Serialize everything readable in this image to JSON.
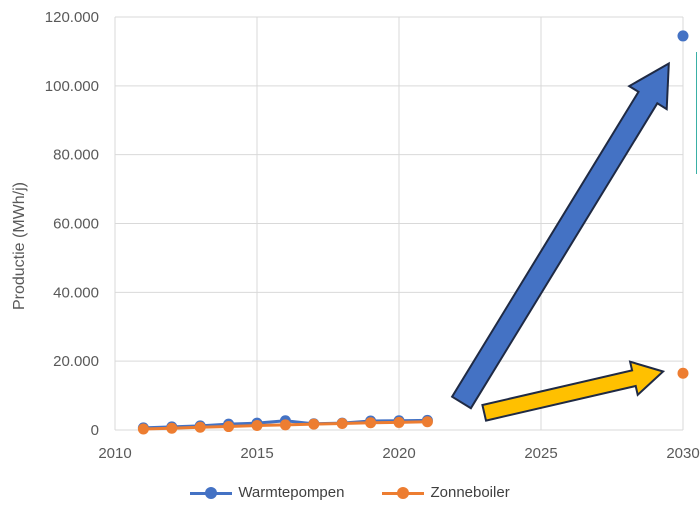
{
  "colors": {
    "warmtepompen": "#4472C4",
    "zonneboiler": "#ED7D31",
    "yellow_arrow": "#FFC000",
    "arrow_stroke": "#1f2a44",
    "grid": "#d9d9d9"
  },
  "chart_data": {
    "type": "line",
    "title": "",
    "xlabel": "",
    "ylabel": "Productie (MWh/j)",
    "xlim": [
      2010,
      2030
    ],
    "ylim": [
      0,
      120000
    ],
    "x_ticks": [
      "2010",
      "2015",
      "2020",
      "2025",
      "2030"
    ],
    "y_ticks": [
      "0",
      "20.000",
      "40.000",
      "60.000",
      "80.000",
      "100.000",
      "120.000"
    ],
    "grid": true,
    "legend": "bottom",
    "series": [
      {
        "name": "Warmtepompen",
        "x": [
          2011,
          2012,
          2013,
          2014,
          2015,
          2016,
          2017,
          2018,
          2019,
          2020,
          2021
        ],
        "values": [
          600,
          900,
          1200,
          1700,
          2000,
          2700,
          1800,
          2000,
          2600,
          2700,
          2800
        ],
        "target": {
          "x": 2030,
          "value": 114500
        }
      },
      {
        "name": "Zonneboiler",
        "x": [
          2011,
          2012,
          2013,
          2014,
          2015,
          2016,
          2017,
          2018,
          2019,
          2020,
          2021
        ],
        "values": [
          300,
          500,
          800,
          1000,
          1300,
          1500,
          1700,
          1900,
          2100,
          2200,
          2400
        ],
        "target": {
          "x": 2030,
          "value": 16500
        }
      }
    ],
    "annotations": [
      {
        "type": "arrow",
        "color": "blue",
        "from": [
          2022.2,
          8000
        ],
        "to": [
          2029.5,
          106500
        ]
      },
      {
        "type": "arrow",
        "color": "yellow",
        "from": [
          2023,
          5000
        ],
        "to": [
          2029.3,
          17000
        ]
      }
    ]
  }
}
